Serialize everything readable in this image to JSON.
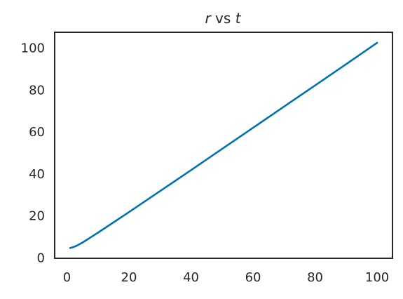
{
  "chart_data": {
    "type": "line",
    "title": {
      "var1": "r",
      "middle": " vs ",
      "var2": "t"
    },
    "xlabel": "",
    "ylabel": "",
    "xlim": [
      -3.95,
      104.95
    ],
    "ylim": [
      -0.5,
      107.2
    ],
    "x_ticks": [
      0,
      20,
      40,
      60,
      80,
      100
    ],
    "x_tick_labels": [
      "0",
      "20",
      "40",
      "60",
      "80",
      "100"
    ],
    "y_ticks": [
      0,
      20,
      40,
      60,
      80,
      100
    ],
    "y_tick_labels": [
      "0",
      "20",
      "40",
      "60",
      "80",
      "100"
    ],
    "grid": false,
    "legend": "none",
    "series": [
      {
        "color": "#0072b2",
        "x": [
          1,
          2,
          3,
          4,
          5,
          6,
          8,
          10,
          15,
          20,
          30,
          40,
          50,
          60,
          70,
          80,
          90,
          100
        ],
        "y": [
          4.4,
          4.8,
          5.4,
          6.2,
          7.0,
          7.9,
          9.8,
          11.7,
          16.6,
          21.5,
          31.5,
          41.5,
          51.6,
          61.7,
          71.8,
          81.9,
          92.0,
          102.2
        ]
      }
    ]
  }
}
